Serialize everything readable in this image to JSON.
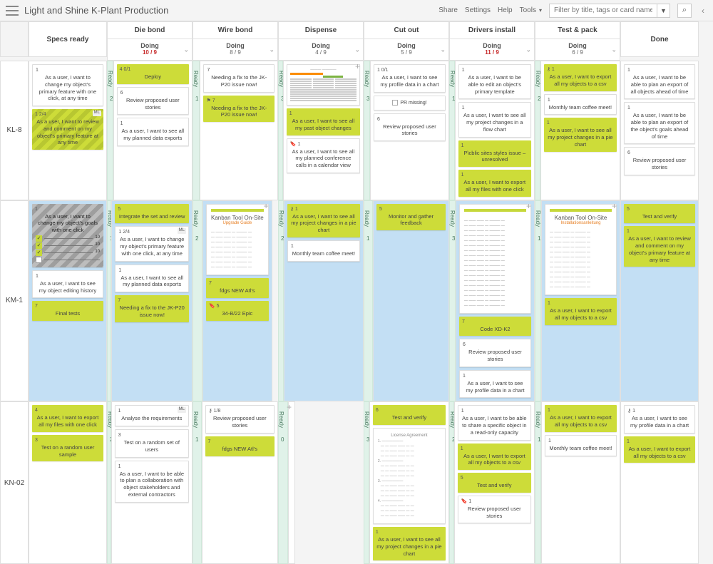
{
  "title": "Light and Shine K-Plant Production",
  "toplinks": [
    "Share",
    "Settings",
    "Help",
    "Tools"
  ],
  "filter_placeholder": "Filter by title, tags or card name",
  "search_icon": "⌕",
  "caret_icon": "▼",
  "more_icon": "‹",
  "stages": [
    {
      "name": "Die bond",
      "wip": "10 / 9",
      "over": true
    },
    {
      "name": "Wire bond",
      "wip": "8 / 9",
      "over": false
    },
    {
      "name": "Dispense",
      "wip": "4 / 9",
      "over": false
    },
    {
      "name": "Cut out",
      "wip": "5 / 9",
      "over": false
    },
    {
      "name": "Drivers install",
      "wip": "11 / 9",
      "over": true
    },
    {
      "name": "Test & pack",
      "wip": "6 / 9",
      "over": false
    }
  ],
  "sub_label": "Doing",
  "specs_header": "Specs ready",
  "done_header": "Done",
  "ready_label": "Ready",
  "lanes": [
    {
      "id": "KL-8"
    },
    {
      "id": "KM-1"
    },
    {
      "id": "KN-02"
    }
  ],
  "kl8": {
    "specs": [
      {
        "kind": "white",
        "tag": "1",
        "txt": "As a user, I want to change my object's primary feature with one click, at any time"
      },
      {
        "kind": "diag-olive",
        "tag": "1  2/4",
        "lbl": "ML",
        "txt": "As a user, I want to review and comment on my object's primary feature at any time"
      }
    ],
    "diebond": [
      {
        "kind": "olive",
        "tag": "4  0/1",
        "txt": "Deploy"
      },
      {
        "kind": "white",
        "tag": "6",
        "txt": "Review proposed user stories"
      },
      {
        "kind": "white",
        "tag": "1",
        "txt": "As a user, I want to see all my planned data exports"
      }
    ],
    "wirebond": [
      {
        "kind": "white",
        "tag": "7",
        "txt": "Needing a fix to the JK-P20 issue now!"
      },
      {
        "kind": "olive",
        "tag": "⚑ 7",
        "txt": "Needing a fix to the JK-P20 issue now!"
      }
    ],
    "dispense_form": true,
    "dispense": [
      {
        "kind": "olive",
        "tag": "1",
        "txt": "As a user, I want to see all my past object changes"
      },
      {
        "kind": "white",
        "tag": "🔖 1",
        "txt": "As a user, I want to see all my planned conference calls in a calendar view"
      }
    ],
    "cutout": [
      {
        "kind": "white",
        "tag": "1  0/1",
        "txt": "As a user, I want to see my profile data in a chart"
      },
      {
        "kind": "white",
        "check": true,
        "txt": "PR missing!"
      },
      {
        "kind": "white",
        "tag": "6",
        "txt": "Review proposed user stories"
      }
    ],
    "drivers": [
      {
        "kind": "white",
        "tag": "1",
        "txt": "As a user, I want to be able to edit an object's primary template"
      },
      {
        "kind": "white",
        "tag": "1",
        "txt": "As a user, I want to see all my project changes in a flow chart"
      },
      {
        "kind": "olive",
        "tag": "1",
        "txt": "P\\cblic sites styles issue – unresolved"
      },
      {
        "kind": "olive",
        "tag": "1",
        "txt": "As a user, I want to export all my files with one click"
      }
    ],
    "test": [
      {
        "kind": "olive",
        "tag": "⚷ 1",
        "txt": "As a user, I want to export all my objects to a csv"
      },
      {
        "kind": "white",
        "tag": "1",
        "txt": "Monthly team coffee meet!"
      },
      {
        "kind": "olive",
        "tag": "1",
        "txt": "As a user, I want to see all my project changes in a pie chart"
      }
    ],
    "done": [
      {
        "kind": "white",
        "tag": "1",
        "txt": "As a user, I want to be able to plan an export of all objects ahead of time"
      },
      {
        "kind": "white",
        "tag": "1",
        "txt": "As a user, I want to be able to plan an export of the object's goals ahead of time"
      },
      {
        "kind": "white",
        "tag": "6",
        "txt": "Review proposed user stories"
      }
    ],
    "ready": {
      "diebond": "2",
      "wirebond": "1",
      "dispense": "3",
      "cutout": "3",
      "drivers": "1",
      "test": "2"
    }
  },
  "km1": {
    "specs": [
      {
        "kind": "diag",
        "tag": "1",
        "txt": "As a user, I want to change my object's goals with one click",
        "checklist": true
      },
      {
        "kind": "white",
        "tag": "1",
        "txt": "As a user, I want to see my object editing history"
      },
      {
        "kind": "olive",
        "tag": "7",
        "txt": "Final tests"
      }
    ],
    "diebond": [
      {
        "kind": "olive",
        "tag": "5",
        "txt": "Integrate the set and review"
      },
      {
        "kind": "white",
        "tag": "1  2/4",
        "lbl": "ML",
        "txt": "As a user, I want to change my object's primary feature with one click, at any time"
      },
      {
        "kind": "white",
        "tag": "1",
        "txt": "As a user, I want to see all my planned data exports"
      },
      {
        "kind": "olive",
        "tag": "7",
        "txt": "Needing a fix to the JK-P20 issue now!"
      }
    ],
    "wirebond_doc": {
      "title": "Kanban Tool On-Site",
      "sub": "Upgrade Guide",
      "foot": "set of 1/0 ✓"
    },
    "wirebond": [
      {
        "kind": "olive",
        "tag": "7",
        "txt": "fdgs NEW Atl's"
      },
      {
        "kind": "olive",
        "tag": "🔖 5",
        "txt": "34-B/22 Epic"
      }
    ],
    "dispense": [
      {
        "kind": "olive",
        "tag": "⚷ 1",
        "txt": "As a user, I want to see all my project changes in a pie chart"
      },
      {
        "kind": "white",
        "tag": "1",
        "txt": "Monthly team coffee meet!"
      }
    ],
    "cutout": [
      {
        "kind": "olive",
        "tag": "5",
        "txt": "Monitor and gather feedback"
      }
    ],
    "drivers_doc": true,
    "drivers": [
      {
        "kind": "olive",
        "tag": "7",
        "txt": "Code XD-K2"
      },
      {
        "kind": "white",
        "tag": "6",
        "txt": "Review proposed user stories"
      },
      {
        "kind": "white",
        "tag": "1",
        "txt": "As a user, I want to see my profile data in a chart"
      }
    ],
    "test_doc": {
      "title": "Kanban Tool On-Site",
      "sub": "Installationsanleitung"
    },
    "test": [
      {
        "kind": "olive",
        "tag": "1",
        "txt": "As a user, I want to export all my objects to a csv"
      }
    ],
    "done": [
      {
        "kind": "olive",
        "tag": "5",
        "txt": "Test and verify"
      },
      {
        "kind": "olive",
        "tag": "1",
        "txt": "As a user, I want to review and comment on my object's primary feature at any time"
      }
    ],
    "ready": {
      "diebond": "1",
      "wirebond": "2",
      "dispense": "2",
      "cutout": "1",
      "drivers": "3",
      "test": "1"
    }
  },
  "kn02": {
    "specs": [
      {
        "kind": "olive",
        "tag": "4",
        "txt": "As a user, I want to export all my files with one click"
      },
      {
        "kind": "olive",
        "tag": "3",
        "txt": "Test on a random user sample"
      }
    ],
    "diebond": [
      {
        "kind": "white",
        "tag": "1",
        "lbl": "ML",
        "txt": "Analyse the requirements"
      },
      {
        "kind": "white",
        "tag": "3",
        "txt": "Test on a random set of users"
      },
      {
        "kind": "white",
        "tag": "1",
        "txt": "As a user, I want to be able to plan a collaboration with object stakeholders and external contractors"
      }
    ],
    "wirebond": [
      {
        "kind": "white",
        "tag": "⚷ 1/8",
        "txt": "Review proposed user stories"
      },
      {
        "kind": "olive",
        "tag": "7",
        "txt": "fdgs NEW Atl's"
      }
    ],
    "dispense": [],
    "cutout": [
      {
        "kind": "olive",
        "tag": "6",
        "txt": "Test and verify"
      }
    ],
    "cutout_doc": {
      "title": "License Agreement"
    },
    "cutout_after": [
      {
        "kind": "olive",
        "tag": "1",
        "txt": "As a user, I want to see all my project changes in a pie chart"
      }
    ],
    "drivers": [
      {
        "kind": "white",
        "tag": "1",
        "txt": "As a user, I want to be able to share a specific object in a read-only capacity"
      },
      {
        "kind": "olive",
        "tag": "1",
        "txt": "As a user, I want to export all my objects to a csv"
      },
      {
        "kind": "olive",
        "tag": "5",
        "txt": "Test and verify"
      },
      {
        "kind": "white",
        "tag": "🔖 1",
        "txt": "Review proposed user stories"
      }
    ],
    "test": [
      {
        "kind": "olive",
        "tag": "1",
        "txt": "As a user, I want to export all my objects to a csv"
      },
      {
        "kind": "white",
        "tag": "1",
        "txt": "Monthly team coffee meet!"
      }
    ],
    "done": [
      {
        "kind": "white",
        "tag": "⚷ 1",
        "txt": "As a user, I want to see my profile data in a chart"
      },
      {
        "kind": "olive",
        "tag": "1",
        "txt": "As a user, I want to export all my objects to a csv"
      }
    ],
    "ready": {
      "diebond": "2",
      "wirebond": "1",
      "dispense": "0",
      "cutout": "3",
      "drivers": "2",
      "test": "1"
    }
  }
}
